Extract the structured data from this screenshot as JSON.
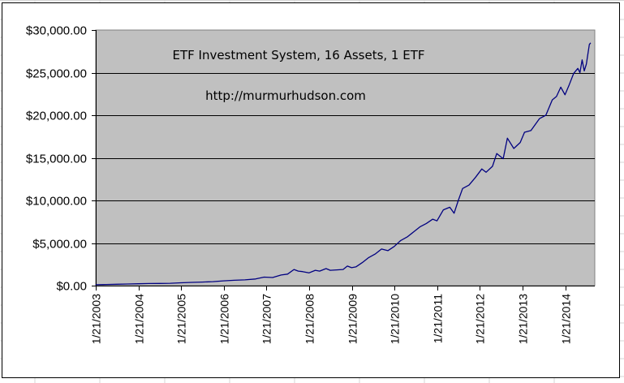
{
  "chart_data": {
    "type": "line",
    "title": "ETF Investment System, 16 Assets, 1 ETF",
    "subtitle": "http://murmurhudson.com",
    "xlabel": "",
    "ylabel": "",
    "ylim": [
      0,
      30000
    ],
    "grid": true,
    "legend": "none",
    "colors": {
      "plot_bg": "#C0C0C0",
      "line": "#000080",
      "gridline": "#000000",
      "plot_border": "#808080"
    },
    "y_ticks": [
      "$0.00",
      "$5,000.00",
      "$10,000.00",
      "$15,000.00",
      "$20,000.00",
      "$25,000.00",
      "$30,000.00"
    ],
    "y_tick_values": [
      0,
      5000,
      10000,
      15000,
      20000,
      25000,
      30000
    ],
    "x_ticks": [
      "1/21/2003",
      "1/21/2004",
      "1/21/2005",
      "1/21/2006",
      "1/21/2007",
      "1/21/2008",
      "1/21/2009",
      "1/21/2010",
      "1/21/2011",
      "1/21/2012",
      "1/21/2013",
      "1/21/2014"
    ],
    "series": [
      {
        "name": "ETF Investment System",
        "x": [
          2003.05,
          2003.3,
          2003.55,
          2003.8,
          2004.05,
          2004.3,
          2004.55,
          2004.8,
          2005.05,
          2005.3,
          2005.55,
          2005.8,
          2006.05,
          2006.3,
          2006.55,
          2006.8,
          2007.0,
          2007.2,
          2007.4,
          2007.55,
          2007.7,
          2007.8,
          2007.9,
          2008.05,
          2008.2,
          2008.3,
          2008.45,
          2008.55,
          2008.7,
          2008.85,
          2008.95,
          2009.05,
          2009.15,
          2009.3,
          2009.45,
          2009.6,
          2009.75,
          2009.9,
          2010.05,
          2010.2,
          2010.35,
          2010.5,
          2010.65,
          2010.8,
          2010.95,
          2011.05,
          2011.2,
          2011.35,
          2011.45,
          2011.55,
          2011.65,
          2011.8,
          2011.95,
          2012.1,
          2012.2,
          2012.35,
          2012.45,
          2012.6,
          2012.7,
          2012.85,
          2013.0,
          2013.1,
          2013.25,
          2013.45,
          2013.6,
          2013.75,
          2013.85,
          2013.95,
          2014.05,
          2014.15,
          2014.25,
          2014.35,
          2014.4,
          2014.45,
          2014.5,
          2014.55,
          2014.58,
          2014.62,
          2014.65
        ],
        "values": [
          100,
          130,
          160,
          190,
          220,
          250,
          260,
          280,
          330,
          380,
          420,
          470,
          560,
          630,
          680,
          780,
          1000,
          950,
          1250,
          1350,
          1900,
          1700,
          1650,
          1500,
          1800,
          1700,
          2000,
          1800,
          1850,
          1900,
          2300,
          2100,
          2200,
          2700,
          3300,
          3700,
          4300,
          4100,
          4600,
          5300,
          5700,
          6300,
          6900,
          7300,
          7800,
          7600,
          8900,
          9200,
          8500,
          10000,
          11400,
          11800,
          12700,
          13700,
          13300,
          14000,
          15500,
          14900,
          17300,
          16100,
          16800,
          18000,
          18200,
          19600,
          20000,
          21800,
          22200,
          23300,
          22400,
          23600,
          24900,
          25500,
          25000,
          26500,
          25200,
          26000,
          27000,
          28300,
          28500
        ]
      }
    ]
  }
}
